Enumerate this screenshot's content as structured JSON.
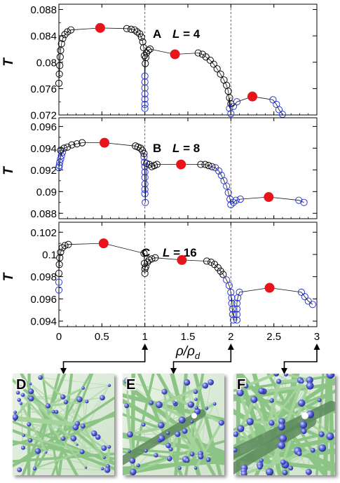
{
  "chart_data": [
    {
      "type": "scatter",
      "panel": "A",
      "label_L": "L = 4",
      "ylabel": "T",
      "ylim": [
        0.072,
        0.0888
      ],
      "yticks": [
        "0.072",
        "0.076",
        "0.08",
        "0.084",
        "0.088"
      ],
      "ytick_values": [
        0.072,
        0.076,
        0.08,
        0.084,
        0.088
      ],
      "xlim": [
        0,
        3
      ],
      "dashed_x": [
        1,
        2
      ],
      "series": [
        {
          "role": "red-filled",
          "color": "#e8141b",
          "points": [
            [
              0.48,
              0.0852
            ],
            [
              1.35,
              0.0812
            ],
            [
              2.25,
              0.0748
            ]
          ]
        },
        {
          "role": "black-open",
          "color": "#000000",
          "points": [
            [
              0.0,
              0.0768
            ],
            [
              0.005,
              0.0782
            ],
            [
              0.01,
              0.0795
            ],
            [
              0.015,
              0.0808
            ],
            [
              0.02,
              0.0818
            ],
            [
              0.03,
              0.0828
            ],
            [
              0.045,
              0.0836
            ],
            [
              0.07,
              0.0842
            ],
            [
              0.1,
              0.0846
            ],
            [
              0.14,
              0.0849
            ],
            [
              0.79,
              0.0851
            ],
            [
              0.84,
              0.085
            ],
            [
              0.88,
              0.0849
            ],
            [
              0.91,
              0.0846
            ],
            [
              0.94,
              0.0843
            ],
            [
              0.96,
              0.0838
            ],
            [
              0.975,
              0.0831
            ],
            [
              0.985,
              0.0822
            ],
            [
              0.995,
              0.081
            ],
            [
              1.005,
              0.0798
            ],
            [
              1.01,
              0.0807
            ],
            [
              1.02,
              0.0814
            ],
            [
              1.04,
              0.0818
            ],
            [
              1.06,
              0.082
            ],
            [
              1.62,
              0.0814
            ],
            [
              1.67,
              0.0812
            ],
            [
              1.71,
              0.0808
            ],
            [
              1.76,
              0.0803
            ],
            [
              1.8,
              0.0797
            ],
            [
              1.84,
              0.079
            ],
            [
              1.88,
              0.0782
            ],
            [
              1.92,
              0.0773
            ],
            [
              1.95,
              0.0765
            ],
            [
              1.97,
              0.0756
            ],
            [
              1.985,
              0.0746
            ],
            [
              2.0,
              0.0737
            ]
          ]
        },
        {
          "role": "blue-open",
          "color": "#2433d4",
          "points": [
            [
              1.0,
              0.0779
            ],
            [
              1.0,
              0.077
            ],
            [
              1.0,
              0.0761
            ],
            [
              1.0,
              0.0752
            ],
            [
              1.0,
              0.0744
            ],
            [
              1.0,
              0.0736
            ],
            [
              1.0,
              0.073
            ],
            [
              1.985,
              0.073
            ],
            [
              2.0,
              0.0722
            ],
            [
              2.03,
              0.0733
            ],
            [
              2.07,
              0.074
            ],
            [
              2.49,
              0.0743
            ],
            [
              2.53,
              0.0736
            ],
            [
              2.56,
              0.0728
            ],
            [
              2.6,
              0.0721
            ]
          ]
        }
      ]
    },
    {
      "type": "scatter",
      "panel": "B",
      "label_L": "L = 8",
      "ylabel": "T",
      "ylim": [
        0.0875,
        0.0968
      ],
      "yticks": [
        "0.088",
        "0.09",
        "0.092",
        "0.094",
        "0.096"
      ],
      "ytick_values": [
        0.088,
        0.09,
        0.092,
        0.094,
        0.096
      ],
      "xlim": [
        0,
        3
      ],
      "dashed_x": [
        1,
        2
      ],
      "series": [
        {
          "role": "red-filled",
          "color": "#e8141b",
          "points": [
            [
              0.53,
              0.0945
            ],
            [
              1.42,
              0.0925
            ],
            [
              2.44,
              0.0895
            ]
          ]
        },
        {
          "role": "black-open",
          "color": "#000000",
          "points": [
            [
              0.02,
              0.0938
            ],
            [
              0.06,
              0.094
            ],
            [
              0.1,
              0.0941
            ],
            [
              0.15,
              0.0943
            ],
            [
              0.21,
              0.0944
            ],
            [
              0.27,
              0.0945
            ],
            [
              0.89,
              0.0942
            ],
            [
              0.92,
              0.0941
            ],
            [
              0.95,
              0.094
            ],
            [
              0.97,
              0.0938
            ],
            [
              0.99,
              0.0935
            ],
            [
              1.02,
              0.0926
            ],
            [
              1.05,
              0.0925
            ],
            [
              1.08,
              0.0923
            ],
            [
              1.11,
              0.0924
            ],
            [
              1.14,
              0.0925
            ],
            [
              1.65,
              0.0925
            ],
            [
              1.7,
              0.0925
            ],
            [
              1.74,
              0.0924
            ],
            [
              1.78,
              0.0923
            ]
          ]
        },
        {
          "role": "blue-open",
          "color": "#2433d4",
          "points": [
            [
              0.0,
              0.0922
            ],
            [
              0.005,
              0.0924
            ],
            [
              0.01,
              0.0927
            ],
            [
              0.02,
              0.093
            ],
            [
              0.03,
              0.0933
            ],
            [
              0.04,
              0.0936
            ],
            [
              0.99,
              0.0932
            ],
            [
              0.995,
              0.0927
            ],
            [
              1.0,
              0.0923
            ],
            [
              1.0,
              0.0918
            ],
            [
              1.0,
              0.0913
            ],
            [
              1.0,
              0.0907
            ],
            [
              1.0,
              0.0902
            ],
            [
              1.0,
              0.0898
            ],
            [
              1.005,
              0.089
            ],
            [
              1.82,
              0.0922
            ],
            [
              1.86,
              0.0919
            ],
            [
              1.89,
              0.0915
            ],
            [
              1.92,
              0.091
            ],
            [
              1.95,
              0.0905
            ],
            [
              1.97,
              0.0899
            ],
            [
              1.99,
              0.0893
            ],
            [
              2.0,
              0.0888
            ],
            [
              2.03,
              0.089
            ],
            [
              2.06,
              0.0892
            ],
            [
              2.11,
              0.0893
            ],
            [
              2.79,
              0.0892
            ],
            [
              2.85,
              0.089
            ]
          ]
        }
      ]
    },
    {
      "type": "scatter",
      "panel": "C",
      "label_L": "L = 16",
      "ylabel": "T",
      "ylim": [
        0.0935,
        0.1029
      ],
      "yticks": [
        "0.094",
        "0.096",
        "0.098",
        "0.1",
        "0.102"
      ],
      "ytick_values": [
        0.094,
        0.096,
        0.098,
        0.1,
        0.102
      ],
      "xlim": [
        0,
        3
      ],
      "dashed_x": [
        1,
        2
      ],
      "series": [
        {
          "role": "red-filled",
          "color": "#e8141b",
          "points": [
            [
              0.52,
              0.101
            ],
            [
              1.43,
              0.0995
            ],
            [
              2.45,
              0.097
            ]
          ]
        },
        {
          "role": "black-open",
          "color": "#000000",
          "points": [
            [
              0.0,
              0.0983
            ],
            [
              0.005,
              0.0991
            ],
            [
              0.01,
              0.0997
            ],
            [
              0.02,
              0.1002
            ],
            [
              0.04,
              0.1006
            ],
            [
              0.07,
              0.1008
            ],
            [
              0.11,
              0.1009
            ],
            [
              0.99,
              0.1001
            ],
            [
              0.995,
              0.0992
            ],
            [
              1.0,
              0.0987
            ],
            [
              1.0,
              0.0983
            ],
            [
              1.01,
              0.0989
            ],
            [
              1.03,
              0.0993
            ],
            [
              1.05,
              0.0995
            ],
            [
              1.08,
              0.0996
            ],
            [
              1.12,
              0.0997
            ],
            [
              1.72,
              0.0994
            ],
            [
              1.77,
              0.0993
            ],
            [
              1.81,
              0.0991
            ],
            [
              1.85,
              0.0988
            ],
            [
              1.88,
              0.0985
            ],
            [
              1.91,
              0.0982
            ]
          ]
        },
        {
          "role": "blue-open",
          "color": "#2433d4",
          "points": [
            [
              0.0,
              0.0975
            ],
            [
              0.0,
              0.0968
            ],
            [
              1.95,
              0.0977
            ],
            [
              1.98,
              0.0972
            ],
            [
              2.0,
              0.0966
            ],
            [
              2.01,
              0.0961
            ],
            [
              2.01,
              0.0956
            ],
            [
              2.02,
              0.0951
            ],
            [
              2.02,
              0.0946
            ],
            [
              2.03,
              0.0941
            ],
            [
              2.07,
              0.0941
            ],
            [
              2.07,
              0.0946
            ],
            [
              2.07,
              0.0951
            ],
            [
              2.07,
              0.0956
            ],
            [
              2.08,
              0.0961
            ],
            [
              2.1,
              0.0966
            ],
            [
              2.82,
              0.0966
            ],
            [
              2.86,
              0.0962
            ],
            [
              2.9,
              0.0958
            ],
            [
              2.95,
              0.0955
            ]
          ]
        }
      ]
    }
  ],
  "x_axis": {
    "xlim": [
      0,
      3
    ],
    "ticks": [
      0,
      0.5,
      1,
      1.5,
      2,
      2.5,
      3
    ],
    "tick_labels": [
      "0",
      "0.5",
      "1",
      "1.5",
      "2",
      "2.5",
      "3"
    ],
    "label_main": "ρ/ρ",
    "label_sub": "d"
  },
  "snapshots": [
    {
      "letter": "D",
      "points_to": 1
    },
    {
      "letter": "E",
      "points_to": 2
    },
    {
      "letter": "F",
      "points_to": 3
    }
  ],
  "colors": {
    "red": "#e8141b",
    "blue": "#2433d4",
    "black": "#000000",
    "rod": "#a9d6a1",
    "node": "#5560d8"
  }
}
